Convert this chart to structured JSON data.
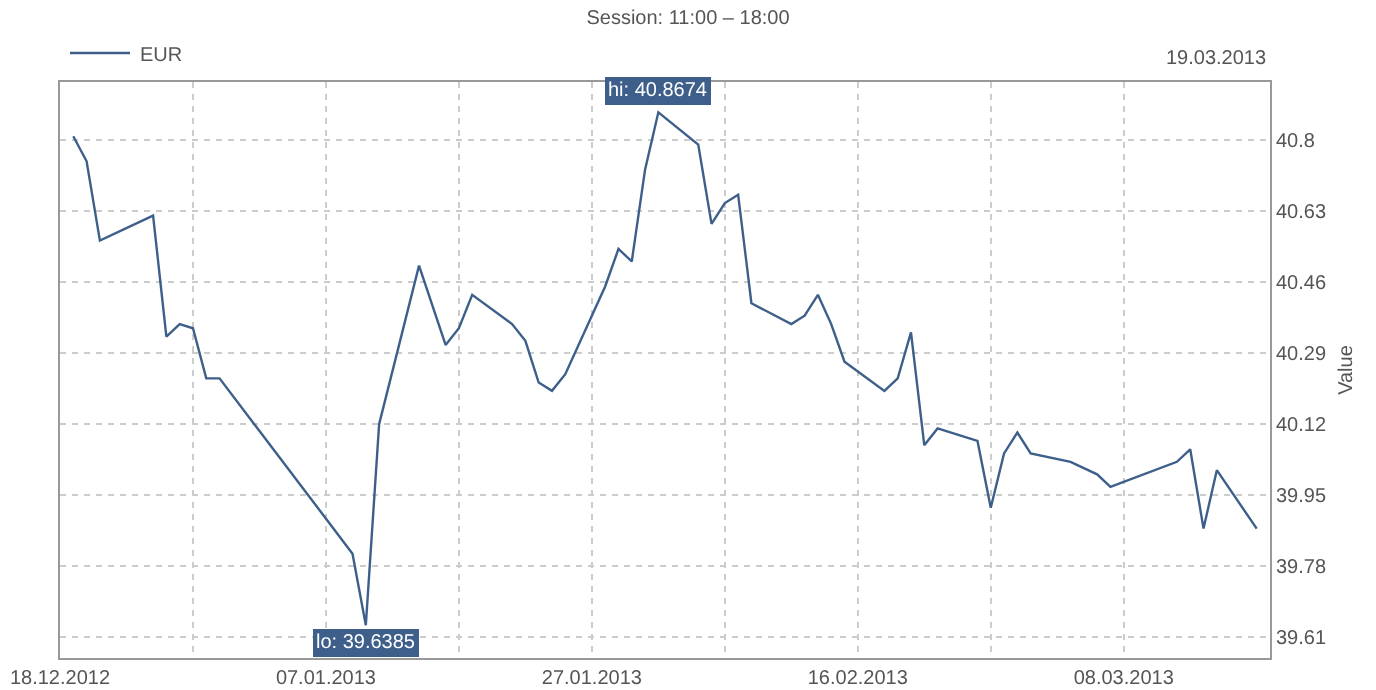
{
  "chart_data": {
    "type": "line",
    "title": "Session: 11:00 – 18:00",
    "ylabel": "Value",
    "annotations": [
      "19.03.2013",
      {
        "text": "hi: 40.8674",
        "x": "2013-02-01",
        "y": 40.8674
      },
      {
        "text": "lo: 39.6385",
        "x": "2013-01-10",
        "y": 39.6385
      }
    ],
    "x": [
      "2012-12-19",
      "2012-12-20",
      "2012-12-21",
      "2012-12-25",
      "2012-12-26",
      "2012-12-27",
      "2012-12-28",
      "2012-12-29",
      "2012-12-30",
      "2013-01-09",
      "2013-01-10",
      "2013-01-11",
      "2013-01-14",
      "2013-01-16",
      "2013-01-17",
      "2013-01-18",
      "2013-01-21",
      "2013-01-22",
      "2013-01-23",
      "2013-01-24",
      "2013-01-25",
      "2013-01-28",
      "2013-01-29",
      "2013-01-30",
      "2013-01-31",
      "2013-02-01",
      "2013-02-04",
      "2013-02-05",
      "2013-02-06",
      "2013-02-07",
      "2013-02-08",
      "2013-02-11",
      "2013-02-12",
      "2013-02-13",
      "2013-02-14",
      "2013-02-15",
      "2013-02-18",
      "2013-02-19",
      "2013-02-20",
      "2013-02-21",
      "2013-02-22",
      "2013-02-25",
      "2013-02-26",
      "2013-02-27",
      "2013-02-28",
      "2013-03-01",
      "2013-03-04",
      "2013-03-06",
      "2013-03-07",
      "2013-03-12",
      "2013-03-13",
      "2013-03-14",
      "2013-03-15",
      "2013-03-18"
    ],
    "series": [
      {
        "name": "EUR",
        "color": "#3d5f8a",
        "values": [
          40.81,
          40.75,
          40.56,
          40.62,
          40.33,
          40.36,
          40.35,
          40.23,
          40.23,
          39.81,
          39.6385,
          40.12,
          40.5,
          40.31,
          40.35,
          40.43,
          40.36,
          40.32,
          40.22,
          40.2,
          40.24,
          40.45,
          40.54,
          40.51,
          40.73,
          40.8674,
          40.79,
          40.6,
          40.65,
          40.67,
          40.41,
          40.36,
          40.38,
          40.43,
          40.36,
          40.27,
          40.2,
          40.23,
          40.34,
          40.07,
          40.11,
          40.08,
          39.92,
          40.05,
          40.1,
          40.05,
          40.03,
          40.0,
          39.97,
          40.03,
          40.06,
          39.87,
          40.01,
          39.87
        ]
      }
    ],
    "xlim": [
      "2012-12-18",
      "2013-03-19"
    ],
    "xticks": [
      {
        "value": "2012-12-18",
        "label": "18.12.2012"
      },
      {
        "value": "2012-12-28",
        "label": null
      },
      {
        "value": "2013-01-07",
        "label": "07.01.2013"
      },
      {
        "value": "2013-01-17",
        "label": null
      },
      {
        "value": "2013-01-27",
        "label": "27.01.2013"
      },
      {
        "value": "2013-02-06",
        "label": null
      },
      {
        "value": "2013-02-16",
        "label": "16.02.2013"
      },
      {
        "value": "2013-02-26",
        "label": null
      },
      {
        "value": "2013-03-08",
        "label": "08.03.2013"
      }
    ],
    "ylim": [
      39.56,
      40.94
    ],
    "yticks": [
      39.61,
      39.78,
      39.95,
      40.12,
      40.29,
      40.46,
      40.63,
      40.8
    ],
    "grid": true,
    "legend": "top left",
    "marker": "none",
    "line_style": "solid"
  }
}
